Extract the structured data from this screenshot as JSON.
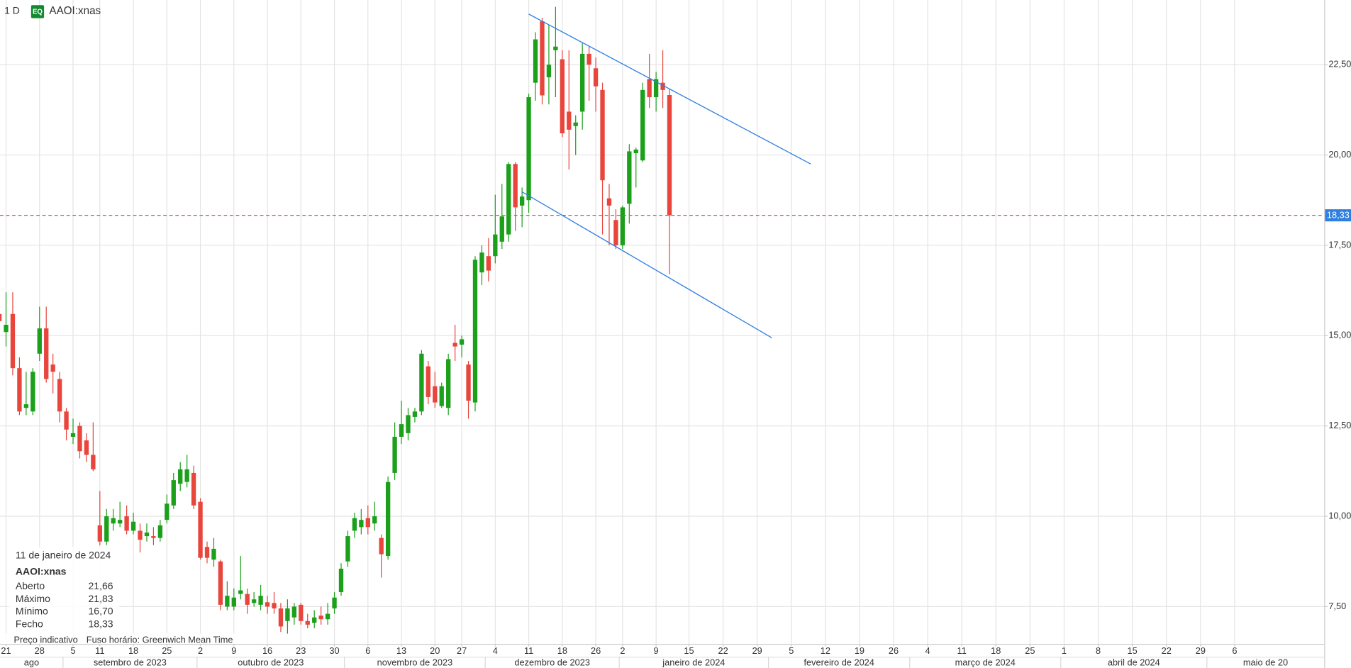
{
  "chart_data": {
    "type": "candlestick",
    "interval": "1 D",
    "badge": "EQ",
    "symbol": "AAOI:xnas",
    "x": [
      "2023-08-18",
      "2023-08-21",
      "2023-08-22",
      "2023-08-23",
      "2023-08-24",
      "2023-08-25",
      "2023-08-28",
      "2023-08-29",
      "2023-08-30",
      "2023-08-31",
      "2023-09-01",
      "2023-09-05",
      "2023-09-06",
      "2023-09-07",
      "2023-09-08",
      "2023-09-11",
      "2023-09-12",
      "2023-09-13",
      "2023-09-14",
      "2023-09-15",
      "2023-09-18",
      "2023-09-19",
      "2023-09-20",
      "2023-09-21",
      "2023-09-22",
      "2023-09-25",
      "2023-09-26",
      "2023-09-27",
      "2023-09-28",
      "2023-09-29",
      "2023-10-02",
      "2023-10-03",
      "2023-10-04",
      "2023-10-05",
      "2023-10-06",
      "2023-10-09",
      "2023-10-10",
      "2023-10-11",
      "2023-10-12",
      "2023-10-13",
      "2023-10-16",
      "2023-10-17",
      "2023-10-18",
      "2023-10-19",
      "2023-10-20",
      "2023-10-23",
      "2023-10-24",
      "2023-10-25",
      "2023-10-26",
      "2023-10-27",
      "2023-10-30",
      "2023-10-31",
      "2023-11-01",
      "2023-11-02",
      "2023-11-03",
      "2023-11-06",
      "2023-11-07",
      "2023-11-08",
      "2023-11-09",
      "2023-11-10",
      "2023-11-13",
      "2023-11-14",
      "2023-11-15",
      "2023-11-16",
      "2023-11-17",
      "2023-11-20",
      "2023-11-21",
      "2023-11-22",
      "2023-11-24",
      "2023-11-27",
      "2023-11-28",
      "2023-11-29",
      "2023-11-30",
      "2023-12-01",
      "2023-12-04",
      "2023-12-05",
      "2023-12-06",
      "2023-12-07",
      "2023-12-08",
      "2023-12-11",
      "2023-12-12",
      "2023-12-13",
      "2023-12-14",
      "2023-12-15",
      "2023-12-18",
      "2023-12-19",
      "2023-12-20",
      "2023-12-21",
      "2023-12-22",
      "2023-12-26",
      "2023-12-27",
      "2023-12-28",
      "2023-12-29",
      "2024-01-02",
      "2024-01-03",
      "2024-01-04",
      "2024-01-05",
      "2024-01-08",
      "2024-01-09",
      "2024-01-10",
      "2024-01-11"
    ],
    "open": [
      15.6,
      15.1,
      15.6,
      14.1,
      13.0,
      12.9,
      14.5,
      15.2,
      14.2,
      13.8,
      12.9,
      12.2,
      12.5,
      12.1,
      11.7,
      9.75,
      9.3,
      9.8,
      9.8,
      10.0,
      9.6,
      9.6,
      9.45,
      9.45,
      9.4,
      9.9,
      10.3,
      10.9,
      10.95,
      11.2,
      10.4,
      9.15,
      8.8,
      8.75,
      7.5,
      7.5,
      7.85,
      7.85,
      7.6,
      7.55,
      7.62,
      7.6,
      7.45,
      7.1,
      7.2,
      7.55,
      7.1,
      7.05,
      7.25,
      7.15,
      7.45,
      7.9,
      8.75,
      9.6,
      9.7,
      9.95,
      9.8,
      9.4,
      8.9,
      11.2,
      12.2,
      12.3,
      12.75,
      12.9,
      14.15,
      13.6,
      13.05,
      13.0,
      14.8,
      14.75,
      14.2,
      13.15,
      16.75,
      17.2,
      17.2,
      17.6,
      17.8,
      19.75,
      18.6,
      18.75,
      22.0,
      23.7,
      22.15,
      22.9,
      22.65,
      21.2,
      20.8,
      21.2,
      22.8,
      22.4,
      21.8,
      18.8,
      18.2,
      17.5,
      18.65,
      20.05,
      19.85,
      22.1,
      21.6,
      22.0,
      21.66
    ],
    "high": [
      16.0,
      16.2,
      16.2,
      14.4,
      14.0,
      14.1,
      15.8,
      15.8,
      14.5,
      14.0,
      13.0,
      12.7,
      12.6,
      12.3,
      12.6,
      10.7,
      10.2,
      10.2,
      10.4,
      10.3,
      10.1,
      9.8,
      9.8,
      9.7,
      9.9,
      10.6,
      11.2,
      11.5,
      11.7,
      11.4,
      10.5,
      9.3,
      9.4,
      8.8,
      8.2,
      8.0,
      8.9,
      8.0,
      7.9,
      8.1,
      7.8,
      7.9,
      7.6,
      7.7,
      7.6,
      7.6,
      7.3,
      7.4,
      7.5,
      7.6,
      7.9,
      8.7,
      9.6,
      10.1,
      10.2,
      10.3,
      10.4,
      9.5,
      11.1,
      12.6,
      13.2,
      13.0,
      13.0,
      14.6,
      14.3,
      14.0,
      13.7,
      14.5,
      15.3,
      15.0,
      14.3,
      17.2,
      17.5,
      17.7,
      18.9,
      19.2,
      19.8,
      19.8,
      19.1,
      21.7,
      23.4,
      23.8,
      23.6,
      24.1,
      22.9,
      22.9,
      21.1,
      23.1,
      23.0,
      22.7,
      22.0,
      19.2,
      18.5,
      18.6,
      20.3,
      20.2,
      22.0,
      22.8,
      22.3,
      22.9,
      21.83
    ],
    "low": [
      15.0,
      14.7,
      13.9,
      12.8,
      12.8,
      12.8,
      14.3,
      13.7,
      13.4,
      12.6,
      12.1,
      12.0,
      11.6,
      11.5,
      11.25,
      9.2,
      9.2,
      9.6,
      9.7,
      9.5,
      9.5,
      9.0,
      9.3,
      9.2,
      9.3,
      9.8,
      10.2,
      10.7,
      10.8,
      10.2,
      8.8,
      8.7,
      8.6,
      7.4,
      7.4,
      7.4,
      7.7,
      7.3,
      7.5,
      7.4,
      7.3,
      7.3,
      6.8,
      6.75,
      7.0,
      7.0,
      6.9,
      6.9,
      7.0,
      7.0,
      7.3,
      7.8,
      8.6,
      9.4,
      9.5,
      9.5,
      9.6,
      8.3,
      8.8,
      11.0,
      12.0,
      12.1,
      12.6,
      12.8,
      13.1,
      13.0,
      13.0,
      12.8,
      14.3,
      14.4,
      12.7,
      12.9,
      16.4,
      16.5,
      17.0,
      17.4,
      17.6,
      17.9,
      18.0,
      18.4,
      21.5,
      21.4,
      21.4,
      21.6,
      20.5,
      19.6,
      20.0,
      20.7,
      21.5,
      21.2,
      17.8,
      17.5,
      17.4,
      17.4,
      18.1,
      19.1,
      19.8,
      21.3,
      21.2,
      21.3,
      16.7
    ],
    "close": [
      15.4,
      15.3,
      14.1,
      12.9,
      13.1,
      14.0,
      15.2,
      13.8,
      14.0,
      12.9,
      12.4,
      12.3,
      11.8,
      11.7,
      11.3,
      9.3,
      10.0,
      9.95,
      9.9,
      9.6,
      9.85,
      9.35,
      9.55,
      9.4,
      9.75,
      10.35,
      11.0,
      11.3,
      11.3,
      10.3,
      8.85,
      8.85,
      9.1,
      7.55,
      7.8,
      7.75,
      7.95,
      7.55,
      7.7,
      7.8,
      7.5,
      7.45,
      6.95,
      7.45,
      7.5,
      7.1,
      7.0,
      7.2,
      7.15,
      7.3,
      7.75,
      8.55,
      9.45,
      9.95,
      9.9,
      9.7,
      10.0,
      8.95,
      10.95,
      12.2,
      12.55,
      12.8,
      12.9,
      14.5,
      13.3,
      13.15,
      13.6,
      14.35,
      14.7,
      14.9,
      13.2,
      17.1,
      17.3,
      16.8,
      17.8,
      18.3,
      19.75,
      18.55,
      18.85,
      21.6,
      23.2,
      21.65,
      22.5,
      23.0,
      20.6,
      20.7,
      20.9,
      22.8,
      22.5,
      21.9,
      19.3,
      18.6,
      17.5,
      18.55,
      20.1,
      20.15,
      21.8,
      21.6,
      22.1,
      21.8,
      18.33
    ],
    "up_color": "#1ca01c",
    "down_color": "#e8453c",
    "ylim": [
      6.47,
      24.29
    ],
    "yticks": [
      {
        "value": 7.5,
        "label": "7,50"
      },
      {
        "value": 10,
        "label": "10,00"
      },
      {
        "value": 12.5,
        "label": "12,50"
      },
      {
        "value": 15,
        "label": "15,00"
      },
      {
        "value": 17.5,
        "label": "17,50"
      },
      {
        "value": 20,
        "label": "20,00"
      },
      {
        "value": 22.5,
        "label": "22,50"
      }
    ],
    "xticks": [
      {
        "value": "2023-08-21",
        "label": "21"
      },
      {
        "value": "2023-08-28",
        "label": "28"
      },
      {
        "value": "2023-09-05",
        "label": "5"
      },
      {
        "value": "2023-09-11",
        "label": "11"
      },
      {
        "value": "2023-09-18",
        "label": "18"
      },
      {
        "value": "2023-09-25",
        "label": "25"
      },
      {
        "value": "2023-10-02",
        "label": "2"
      },
      {
        "value": "2023-10-09",
        "label": "9"
      },
      {
        "value": "2023-10-16",
        "label": "16"
      },
      {
        "value": "2023-10-23",
        "label": "23"
      },
      {
        "value": "2023-10-30",
        "label": "30"
      },
      {
        "value": "2023-11-06",
        "label": "6"
      },
      {
        "value": "2023-11-13",
        "label": "13"
      },
      {
        "value": "2023-11-20",
        "label": "20"
      },
      {
        "value": "2023-11-27",
        "label": "27"
      },
      {
        "value": "2023-12-04",
        "label": "4"
      },
      {
        "value": "2023-12-11",
        "label": "11"
      },
      {
        "value": "2023-12-18",
        "label": "18"
      },
      {
        "value": "2023-12-26",
        "label": "26"
      },
      {
        "value": "2024-01-02",
        "label": "2"
      },
      {
        "value": "2024-01-09",
        "label": "9"
      },
      {
        "value": "2024-01-15",
        "label": "15"
      },
      {
        "value": "2024-01-22",
        "label": "22"
      },
      {
        "value": "2024-01-29",
        "label": "29"
      },
      {
        "value": "2024-02-05",
        "label": "5"
      },
      {
        "value": "2024-02-12",
        "label": "12"
      },
      {
        "value": "2024-02-19",
        "label": "19"
      },
      {
        "value": "2024-02-26",
        "label": "26"
      },
      {
        "value": "2024-03-04",
        "label": "4"
      },
      {
        "value": "2024-03-11",
        "label": "11"
      },
      {
        "value": "2024-03-18",
        "label": "18"
      },
      {
        "value": "2024-03-25",
        "label": "25"
      },
      {
        "value": "2024-04-01",
        "label": "1"
      },
      {
        "value": "2024-04-08",
        "label": "8"
      },
      {
        "value": "2024-04-15",
        "label": "15"
      },
      {
        "value": "2024-04-22",
        "label": "22"
      },
      {
        "value": "2024-04-29",
        "label": "29"
      },
      {
        "value": "2024-05-06",
        "label": "6"
      }
    ],
    "months": [
      {
        "value": "2023-08",
        "label": "ago"
      },
      {
        "value": "2023-09",
        "label": "setembro de 2023"
      },
      {
        "value": "2023-10",
        "label": "outubro de 2023"
      },
      {
        "value": "2023-11",
        "label": "novembro de 2023"
      },
      {
        "value": "2023-12",
        "label": "dezembro de 2023"
      },
      {
        "value": "2024-01",
        "label": "janeiro de 2024"
      },
      {
        "value": "2024-02",
        "label": "fevereiro de 2024"
      },
      {
        "value": "2024-03",
        "label": "março de 2024"
      },
      {
        "value": "2024-04",
        "label": "abril de 2024"
      },
      {
        "value": "2024-05",
        "label": "maio de 20"
      }
    ],
    "grid": true,
    "last_price": {
      "value": 18.33,
      "label": "18,33",
      "color": "#e8453c",
      "label_color": "#2f7fe0"
    },
    "trendlines": [
      {
        "x": [
          "2023-12-11",
          "2024-02-09"
        ],
        "y": [
          23.9,
          19.75
        ],
        "color": "#2f7fe0"
      },
      {
        "x": [
          "2023-12-08",
          "2024-02-01"
        ],
        "y": [
          18.98,
          14.94
        ],
        "color": "#2f7fe0"
      }
    ],
    "info": {
      "date": "11 de janeiro de 2024",
      "symbol": "AAOI:xnas",
      "rows": [
        {
          "label": "Aberto",
          "value": "21,66"
        },
        {
          "label": "Máximo",
          "value": "21,83"
        },
        {
          "label": "Mínimo",
          "value": "16,70"
        },
        {
          "label": "Fecho",
          "value": "18,33"
        }
      ]
    },
    "footer": [
      "Preço indicativo",
      "Fuso horário: Greenwich Mean Time"
    ]
  }
}
